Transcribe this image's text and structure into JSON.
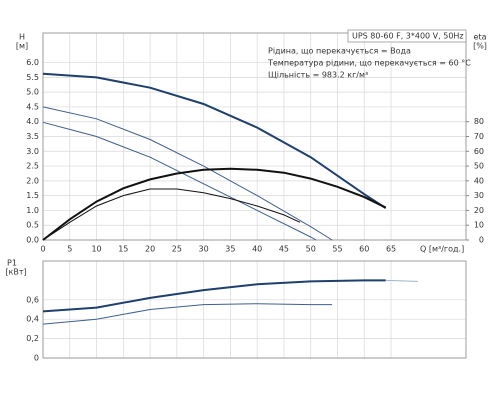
{
  "chart_data": [
    {
      "type": "line",
      "title": "UPS 80-60 F, 3*400 V, 50Hz",
      "notes": [
        "Рідина, що перекачується = Вода",
        "Температура рідини, що перекачується = 60 °C",
        "Щільність = 983.2 кг/м³"
      ],
      "y_label": "H",
      "y_unit": "[м]",
      "y2_label": "eta",
      "y2_unit": "[%]",
      "x_label": "Q [м³/год.]",
      "xlim": [
        0,
        79
      ],
      "xticks": [
        0,
        5,
        10,
        15,
        20,
        25,
        30,
        35,
        40,
        45,
        50,
        55,
        60,
        65
      ],
      "ylim": [
        0,
        7
      ],
      "yticks": [
        {
          "value": 0,
          "label": "0.0"
        },
        {
          "value": 0.5,
          "label": "0.5"
        },
        {
          "value": 1,
          "label": "1.0"
        },
        {
          "value": 1.5,
          "label": "1.5"
        },
        {
          "value": 2,
          "label": "2.0"
        },
        {
          "value": 2.5,
          "label": "2.5"
        },
        {
          "value": 3,
          "label": "3.0"
        },
        {
          "value": 3.5,
          "label": "3.5"
        },
        {
          "value": 4,
          "label": "4.0"
        },
        {
          "value": 4.5,
          "label": "4.5"
        },
        {
          "value": 5,
          "label": "5.0"
        },
        {
          "value": 5.5,
          "label": "5.5"
        },
        {
          "value": 6,
          "label": "6.0"
        }
      ],
      "y2lim": [
        0,
        140
      ],
      "y2ticks": [
        0,
        10,
        20,
        30,
        40,
        50,
        60,
        70,
        80
      ],
      "grid": true,
      "series": [
        {
          "color": "#1f3f6e",
          "width": 2,
          "x": [
            0,
            10,
            20,
            30,
            40,
            50,
            60,
            64
          ],
          "values": [
            5.62,
            5.5,
            5.15,
            4.6,
            3.8,
            2.8,
            1.55,
            1.08
          ]
        },
        {
          "color": "#3f5f8f",
          "width": 1,
          "x": [
            0,
            10,
            20,
            30,
            40,
            50,
            54
          ],
          "values": [
            4.5,
            4.1,
            3.4,
            2.5,
            1.5,
            0.45,
            0
          ]
        },
        {
          "color": "#3f5f8f",
          "width": 1,
          "x": [
            0,
            10,
            20,
            30,
            40,
            50,
            51
          ],
          "values": [
            3.98,
            3.5,
            2.8,
            1.9,
            1.0,
            0.1,
            0
          ]
        },
        {
          "color": "#111111",
          "width": 2,
          "axis": "y2",
          "x": [
            0,
            5,
            10,
            15,
            20,
            25,
            30,
            35,
            40,
            45,
            50,
            55,
            60,
            64
          ],
          "values": [
            0,
            14,
            26,
            35,
            41,
            45,
            47.5,
            48.2,
            47.5,
            45.5,
            41.5,
            36,
            29,
            22
          ]
        },
        {
          "color": "#111111",
          "width": 1,
          "axis": "y2",
          "x": [
            0,
            5,
            10,
            15,
            20,
            25,
            30,
            35,
            40,
            45,
            48
          ],
          "values": [
            0,
            12,
            23,
            30,
            34.5,
            34.5,
            32,
            28,
            23,
            17,
            12
          ]
        }
      ]
    },
    {
      "type": "line",
      "y_label": "P1",
      "y_unit": "[кВт]",
      "xlim": [
        0,
        79
      ],
      "ylim": [
        0,
        1
      ],
      "yticks": [
        0,
        {
          "value": 0.2,
          "label": "0,2"
        },
        {
          "value": 0.4,
          "label": "0,4"
        },
        {
          "value": 0.6,
          "label": "0,6"
        }
      ],
      "grid": true,
      "series": [
        {
          "color": "#1f3f6e",
          "width": 2,
          "x": [
            0,
            10,
            20,
            30,
            40,
            50,
            60,
            64
          ],
          "values": [
            0.48,
            0.52,
            0.62,
            0.7,
            0.76,
            0.79,
            0.8,
            0.8
          ]
        },
        {
          "color": "#9fb3c8",
          "width": 1,
          "x": [
            64,
            70
          ],
          "values": [
            0.8,
            0.79
          ]
        },
        {
          "color": "#3f5f8f",
          "width": 1,
          "x": [
            0,
            10,
            20,
            30,
            40,
            50,
            54
          ],
          "values": [
            0.35,
            0.4,
            0.5,
            0.55,
            0.56,
            0.55,
            0.55
          ]
        }
      ]
    }
  ]
}
